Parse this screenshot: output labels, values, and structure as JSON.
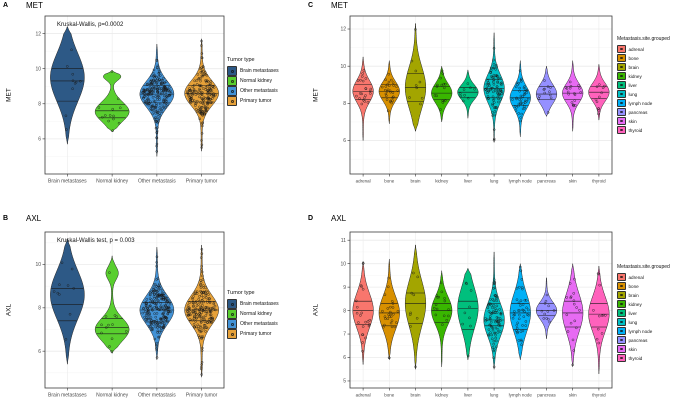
{
  "figure": {
    "background": "#ffffff",
    "panel_border_color": "#3c3c3c",
    "grid_major_color": "#ebebeb",
    "grid_minor_color": "#f4f4f4"
  },
  "legends": {
    "tumor_type": {
      "title": "Tumor type",
      "items": [
        {
          "label": "Brain metastases",
          "color": "#2D5986"
        },
        {
          "label": "Normal kidney",
          "color": "#59CE2F"
        },
        {
          "label": "Other metastasis",
          "color": "#4292D6"
        },
        {
          "label": "Primary tumor",
          "color": "#E6A139"
        }
      ]
    },
    "site": {
      "title": "Metastasis.site.grouped",
      "items": [
        {
          "label": "adrenal",
          "color": "#F8766D"
        },
        {
          "label": "bone",
          "color": "#D89000"
        },
        {
          "label": "brain",
          "color": "#A3A500"
        },
        {
          "label": "kidney",
          "color": "#39B600"
        },
        {
          "label": "liver",
          "color": "#00BF7D"
        },
        {
          "label": "lung",
          "color": "#00BFC4"
        },
        {
          "label": "lymph node",
          "color": "#00B0F6"
        },
        {
          "label": "pancreas",
          "color": "#9590FF"
        },
        {
          "label": "skin",
          "color": "#E76BF3"
        },
        {
          "label": "thyroid",
          "color": "#FF62BC"
        }
      ]
    }
  },
  "chart_data": {
    "type": "violin",
    "panels": [
      {
        "id": "A",
        "title": "MET",
        "ylabel": "MET",
        "annotation": "Kruskal-Wallis, p=0.0002",
        "yticks": [
          6,
          8,
          10,
          12
        ],
        "ylim": [
          4.0,
          13.0
        ],
        "legend": "tumor_type",
        "violins": [
          {
            "label": "Brain metastases",
            "color": "#2D5986",
            "min": 5.7,
            "q1": 8.15,
            "median": 9.3,
            "q3": 10.0,
            "max": 12.4,
            "mode": 9.5,
            "n": 10
          },
          {
            "label": "Normal kidney",
            "color": "#59CE2F",
            "min": 6.4,
            "q1": 7.2,
            "median": 7.6,
            "q3": 7.95,
            "max": 9.9,
            "mode": 7.55,
            "n": 13,
            "lobes": [
              {
                "at": 9.55,
                "sd": 0.22,
                "amp": 0.5
              }
            ]
          },
          {
            "label": "Other metastasis",
            "color": "#4292D6",
            "min": 5.0,
            "q1": 8.05,
            "median": 8.55,
            "q3": 9.05,
            "max": 11.4,
            "n": 230
          },
          {
            "label": "Primary tumor",
            "color": "#E6A139",
            "min": 5.3,
            "q1": 8.1,
            "median": 8.6,
            "q3": 9.05,
            "max": 11.7,
            "n": 185
          }
        ]
      },
      {
        "id": "B",
        "title": "AXL",
        "ylabel": "AXL",
        "annotation": "Kruskal-Wallis test, p = 0.003",
        "yticks": [
          6,
          8,
          10
        ],
        "ylim": [
          4.3,
          11.5
        ],
        "legend": "tumor_type",
        "violins": [
          {
            "label": "Brain metastases",
            "color": "#2D5986",
            "min": 5.4,
            "q1": 7.4,
            "median": 8.15,
            "q3": 8.9,
            "max": 11.2,
            "mode": 8.6,
            "n": 10
          },
          {
            "label": "Normal kidney",
            "color": "#59CE2F",
            "min": 5.9,
            "q1": 6.8,
            "median": 7.1,
            "q3": 7.5,
            "max": 10.4,
            "mode": 7.0,
            "n": 13,
            "lobes": [
              {
                "at": 9.6,
                "sd": 0.3,
                "amp": 0.35
              }
            ]
          },
          {
            "label": "Other metastasis",
            "color": "#4292D6",
            "min": 5.6,
            "q1": 7.35,
            "median": 7.9,
            "q3": 8.25,
            "max": 10.8,
            "n": 230
          },
          {
            "label": "Primary tumor",
            "color": "#E6A139",
            "min": 4.8,
            "q1": 7.4,
            "median": 7.9,
            "q3": 8.3,
            "max": 10.9,
            "n": 185
          }
        ]
      },
      {
        "id": "C",
        "title": "MET",
        "ylabel": "MET",
        "yticks": [
          6,
          8,
          10,
          12
        ],
        "ylim": [
          4.2,
          12.7
        ],
        "legend": "site",
        "violins": [
          {
            "label": "adrenal",
            "color": "#F8766D",
            "min": 6.0,
            "q1": 8.2,
            "median": 8.65,
            "q3": 9.0,
            "max": 10.5,
            "n": 22
          },
          {
            "label": "bone",
            "color": "#D89000",
            "min": 6.9,
            "q1": 8.3,
            "median": 8.65,
            "q3": 9.0,
            "max": 10.3,
            "n": 28
          },
          {
            "label": "brain",
            "color": "#A3A500",
            "min": 6.5,
            "q1": 8.1,
            "median": 8.85,
            "q3": 9.6,
            "max": 12.3,
            "n": 9
          },
          {
            "label": "kidney",
            "color": "#39B600",
            "min": 7.0,
            "q1": 8.2,
            "median": 8.55,
            "q3": 8.9,
            "max": 10.0,
            "n": 16
          },
          {
            "label": "liver",
            "color": "#00BF7D",
            "min": 7.2,
            "q1": 8.3,
            "median": 8.6,
            "q3": 8.85,
            "max": 9.8,
            "n": 9
          },
          {
            "label": "lung",
            "color": "#00BFC4",
            "min": 5.9,
            "q1": 8.3,
            "median": 8.8,
            "q3": 9.3,
            "max": 11.8,
            "n": 90
          },
          {
            "label": "lymph node",
            "color": "#00B0F6",
            "min": 6.2,
            "q1": 7.9,
            "median": 8.3,
            "q3": 8.7,
            "max": 10.3,
            "n": 45
          },
          {
            "label": "pancreas",
            "color": "#9590FF",
            "min": 7.3,
            "q1": 8.2,
            "median": 8.5,
            "q3": 8.9,
            "max": 10.0,
            "n": 12
          },
          {
            "label": "skin",
            "color": "#E76BF3",
            "min": 6.5,
            "q1": 8.2,
            "median": 8.55,
            "q3": 8.9,
            "max": 10.3,
            "n": 18
          },
          {
            "label": "thyroid",
            "color": "#FF62BC",
            "min": 7.1,
            "q1": 8.25,
            "median": 8.6,
            "q3": 8.9,
            "max": 10.1,
            "n": 12
          }
        ]
      },
      {
        "id": "D",
        "title": "AXL",
        "ylabel": "AXL",
        "yticks": [
          5,
          6,
          7,
          8,
          9,
          10,
          11
        ],
        "ylim": [
          4.7,
          11.35
        ],
        "legend": "site",
        "violins": [
          {
            "label": "adrenal",
            "color": "#F8766D",
            "min": 5.7,
            "q1": 7.4,
            "median": 8.0,
            "q3": 8.4,
            "max": 10.1,
            "n": 22
          },
          {
            "label": "bone",
            "color": "#D89000",
            "min": 5.9,
            "q1": 7.35,
            "median": 7.9,
            "q3": 8.3,
            "max": 10.2,
            "n": 28
          },
          {
            "label": "brain",
            "color": "#A3A500",
            "min": 5.5,
            "q1": 7.45,
            "median": 8.3,
            "q3": 8.75,
            "max": 10.8,
            "n": 9
          },
          {
            "label": "kidney",
            "color": "#39B600",
            "min": 5.6,
            "q1": 7.5,
            "median": 8.0,
            "q3": 8.3,
            "max": 9.7,
            "n": 16
          },
          {
            "label": "liver",
            "color": "#00BF7D",
            "min": 5.9,
            "q1": 7.2,
            "median": 8.1,
            "q3": 8.4,
            "max": 9.8,
            "n": 9
          },
          {
            "label": "lung",
            "color": "#00BFC4",
            "min": 5.5,
            "q1": 7.35,
            "median": 7.6,
            "q3": 8.3,
            "max": 10.5,
            "n": 90
          },
          {
            "label": "lymph node",
            "color": "#00B0F6",
            "min": 5.9,
            "q1": 7.2,
            "median": 7.9,
            "q3": 8.3,
            "max": 10.0,
            "n": 45
          },
          {
            "label": "pancreas",
            "color": "#9590FF",
            "min": 6.8,
            "q1": 7.8,
            "median": 8.0,
            "q3": 8.3,
            "max": 9.4,
            "n": 12
          },
          {
            "label": "skin",
            "color": "#E76BF3",
            "min": 5.6,
            "q1": 7.3,
            "median": 7.9,
            "q3": 8.4,
            "max": 10.0,
            "n": 18
          },
          {
            "label": "thyroid",
            "color": "#FF62BC",
            "min": 5.3,
            "q1": 7.3,
            "median": 7.85,
            "q3": 8.3,
            "max": 9.9,
            "n": 12
          }
        ]
      }
    ]
  }
}
